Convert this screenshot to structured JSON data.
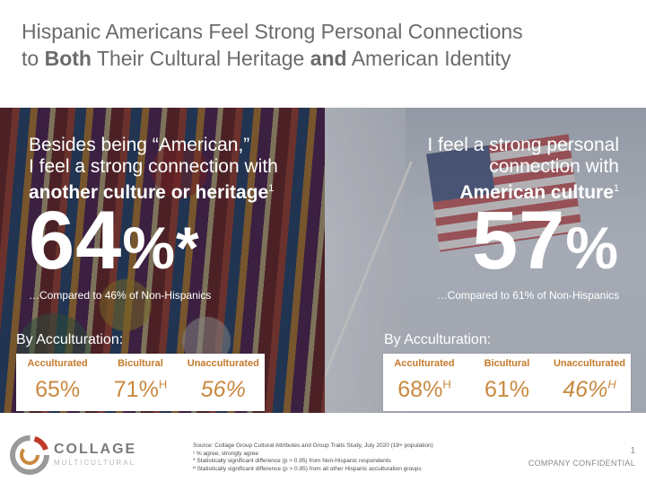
{
  "title": {
    "line1": "Hispanic Americans Feel Strong Personal Connections",
    "line2_pre": "to ",
    "line2_b1": "Both",
    "line2_mid": " Their Cultural Heritage ",
    "line2_b2": "and",
    "line2_post": " American Identity"
  },
  "left": {
    "head_line1": "Besides being “American,”",
    "head_line2": "I feel a strong connection with",
    "head_strong": "another culture or heritage",
    "head_sup": "1",
    "stat_number": "64",
    "stat_suffix": "%*",
    "comparison": "…Compared to 46% of Non-Hispanics",
    "acc_label": "By Acculturation:",
    "groups": [
      {
        "name": "Acculturated",
        "value": "65%",
        "sup": ""
      },
      {
        "name": "Bicultural",
        "value": "71%",
        "sup": "H"
      },
      {
        "name": "Unacculturated",
        "value": "56%",
        "sup": ""
      }
    ]
  },
  "right": {
    "head_line1": "I feel a strong personal",
    "head_line2": "connection with",
    "head_strong": "American culture",
    "head_sup": "1",
    "stat_number": "57",
    "stat_suffix": "%",
    "comparison": "…Compared to 61% of Non-Hispanics",
    "acc_label": "By Acculturation:",
    "groups": [
      {
        "name": "Acculturated",
        "value": "68%",
        "sup": "H"
      },
      {
        "name": "Bicultural",
        "value": "61%",
        "sup": ""
      },
      {
        "name": "Unacculturated",
        "value": "46%",
        "sup": "H"
      }
    ]
  },
  "brand": {
    "name": "COLLAGE",
    "sub": "MULTICULTURAL"
  },
  "footer": {
    "source": "Source: Collage Group Cultural Attributes and Group Traits Study, July 2020 (18+ population)",
    "note1": "¹ % agree, strongly agree",
    "note2": "* Statistically significant difference (p > 0.95) from Non-Hispanic respondents",
    "note3": "ᴴ Statistically significant difference (p > 0.95) from all other Hispanic acculturation groups",
    "page_number": "1",
    "confidential": "COMPANY CONFIDENTIAL"
  },
  "colors": {
    "accent_orange": "#c9893f",
    "title_gray": "#6b6b6b"
  }
}
